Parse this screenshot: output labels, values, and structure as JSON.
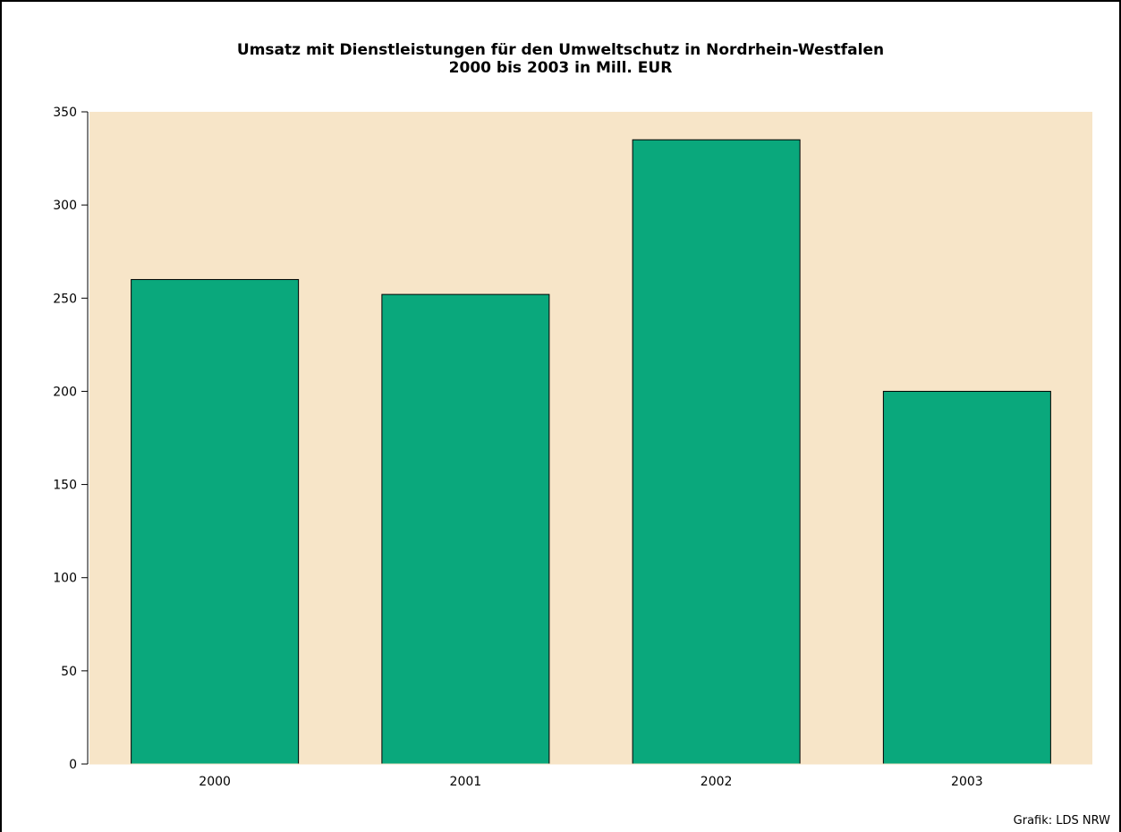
{
  "chart_data": {
    "type": "bar",
    "title_line1": "Umsatz mit Dienstleistungen für den Umweltschutz in Nordrhein-Westfalen",
    "title_line2": "2000 bis 2003 in Mill. EUR",
    "categories": [
      "2000",
      "2001",
      "2002",
      "2003"
    ],
    "values": [
      260,
      252,
      335,
      200
    ],
    "ylim": [
      0,
      350
    ],
    "yticks": [
      0,
      50,
      100,
      150,
      200,
      250,
      300,
      350
    ],
    "xlabel": "",
    "ylabel": "",
    "grid": false,
    "legend": "none",
    "colors": {
      "bar": "#0aa87c",
      "plot_background": "#f7e5c8",
      "bar_edge": "#000000"
    }
  },
  "credit": "Grafik: LDS NRW"
}
